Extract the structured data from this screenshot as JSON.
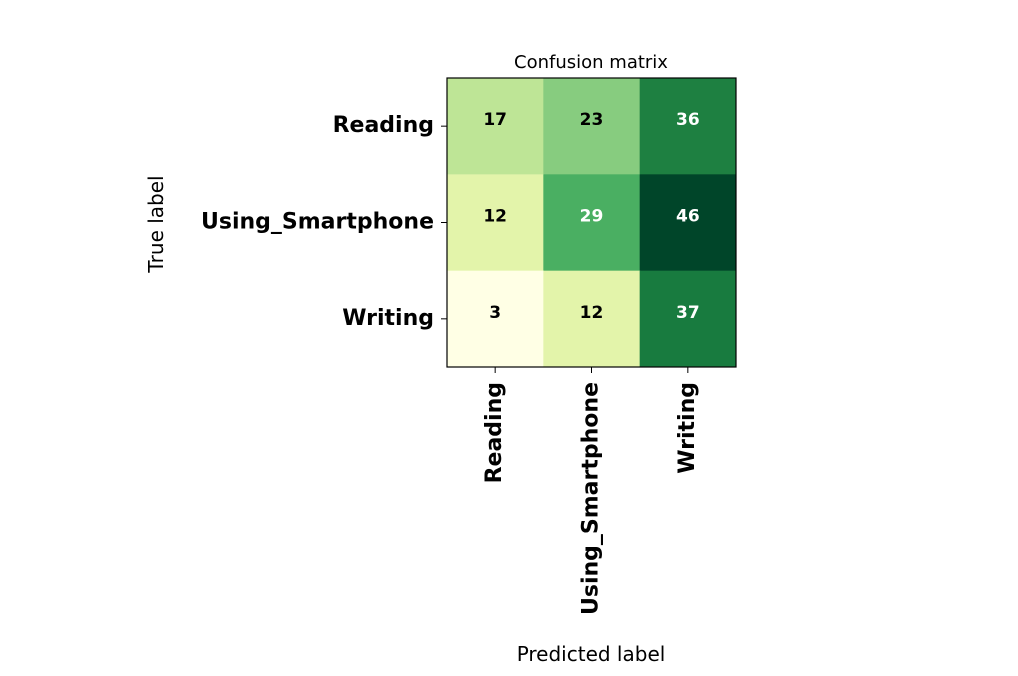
{
  "chart_data": {
    "type": "heatmap",
    "title": "Confusion matrix",
    "xlabel": "Predicted label",
    "ylabel": "True label",
    "x_categories": [
      "Reading",
      "Using_Smartphone",
      "Writing"
    ],
    "y_categories": [
      "Reading",
      "Using_Smartphone",
      "Writing"
    ],
    "values": [
      [
        17,
        23,
        36
      ],
      [
        12,
        29,
        46
      ],
      [
        3,
        12,
        37
      ]
    ],
    "colormap": "Greens",
    "color_range": [
      3,
      46
    ],
    "grid": false,
    "legend": "none"
  }
}
